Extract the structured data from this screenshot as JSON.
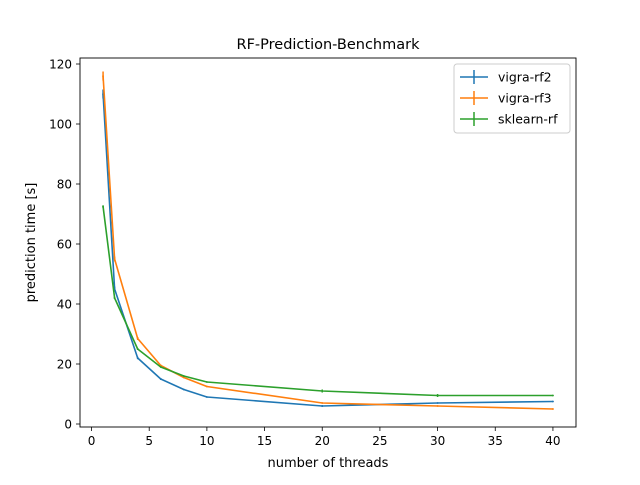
{
  "chart_data": {
    "type": "line",
    "title": "RF-Prediction-Benchmark",
    "xlabel": "number of threads",
    "ylabel": "prediction time [s]",
    "xlim": [
      -1,
      42
    ],
    "ylim": [
      -1,
      122
    ],
    "xticks": [
      0,
      5,
      10,
      15,
      20,
      25,
      30,
      35,
      40
    ],
    "yticks": [
      0,
      20,
      40,
      60,
      80,
      100,
      120
    ],
    "grid": false,
    "legend_position": "top-right",
    "error_bars": true,
    "series": [
      {
        "name": "vigra-rf2",
        "color": "#1f77b4",
        "x": [
          1,
          2,
          4,
          6,
          8,
          10,
          20,
          30,
          40
        ],
        "y": [
          110,
          45,
          22,
          15,
          11.5,
          9,
          6,
          7,
          7.5
        ],
        "err": [
          1.5,
          0.8,
          0.4,
          0.3,
          0.2,
          0.2,
          0.3,
          0.2,
          0.2
        ]
      },
      {
        "name": "vigra-rf3",
        "color": "#ff7f0e",
        "x": [
          1,
          2,
          4,
          6,
          8,
          10,
          20,
          30,
          40
        ],
        "y": [
          116,
          55,
          28.5,
          19.5,
          15.5,
          12.5,
          7,
          6,
          5
        ],
        "err": [
          1.5,
          0.8,
          0.5,
          0.3,
          0.2,
          0.2,
          0.2,
          0.2,
          0.2
        ]
      },
      {
        "name": "sklearn-rf",
        "color": "#2ca02c",
        "x": [
          1,
          2,
          4,
          6,
          8,
          10,
          20,
          30,
          40
        ],
        "y": [
          72.5,
          42,
          25,
          19,
          16,
          14,
          11,
          9.5,
          9.5
        ],
        "err": [
          0.4,
          0.3,
          0.3,
          0.2,
          0.2,
          0.2,
          0.5,
          0.5,
          0.2
        ]
      }
    ]
  }
}
